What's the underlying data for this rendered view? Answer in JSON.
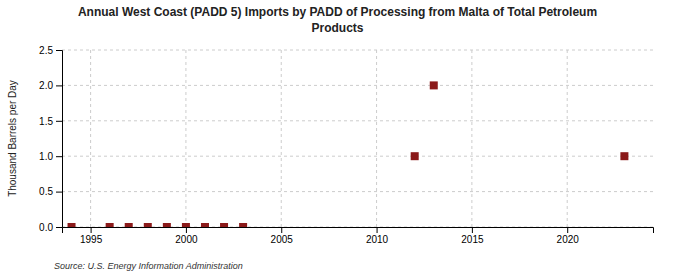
{
  "chart_data": {
    "type": "scatter",
    "title": "Annual West Coast (PADD 5) Imports by PADD of Processing from Malta of Total Petroleum\nProducts",
    "y_label": "Thousand Barrels per Day",
    "source": "Source: U.S. Energy Information Administration",
    "x": [
      1994,
      1996,
      1997,
      1998,
      1999,
      2000,
      2001,
      2002,
      2003,
      2012,
      2013,
      2023
    ],
    "values": [
      0.0,
      0.0,
      0.0,
      0.0,
      0.0,
      0.0,
      0.0,
      0.0,
      0.0,
      1.0,
      2.0,
      1.0
    ],
    "color": "#8b1a1a",
    "marker": "square",
    "xlim": [
      1993.5,
      2024.5
    ],
    "xticks": [
      1995,
      2000,
      2005,
      2010,
      2015,
      2020
    ],
    "ylim": [
      0,
      2.5
    ],
    "yticks": [
      {
        "value": 0,
        "label": "0.0"
      },
      0.5,
      {
        "value": 1,
        "label": "1.0"
      },
      1.5,
      {
        "value": 2,
        "label": "2.0"
      },
      2.5
    ],
    "grid": true
  }
}
